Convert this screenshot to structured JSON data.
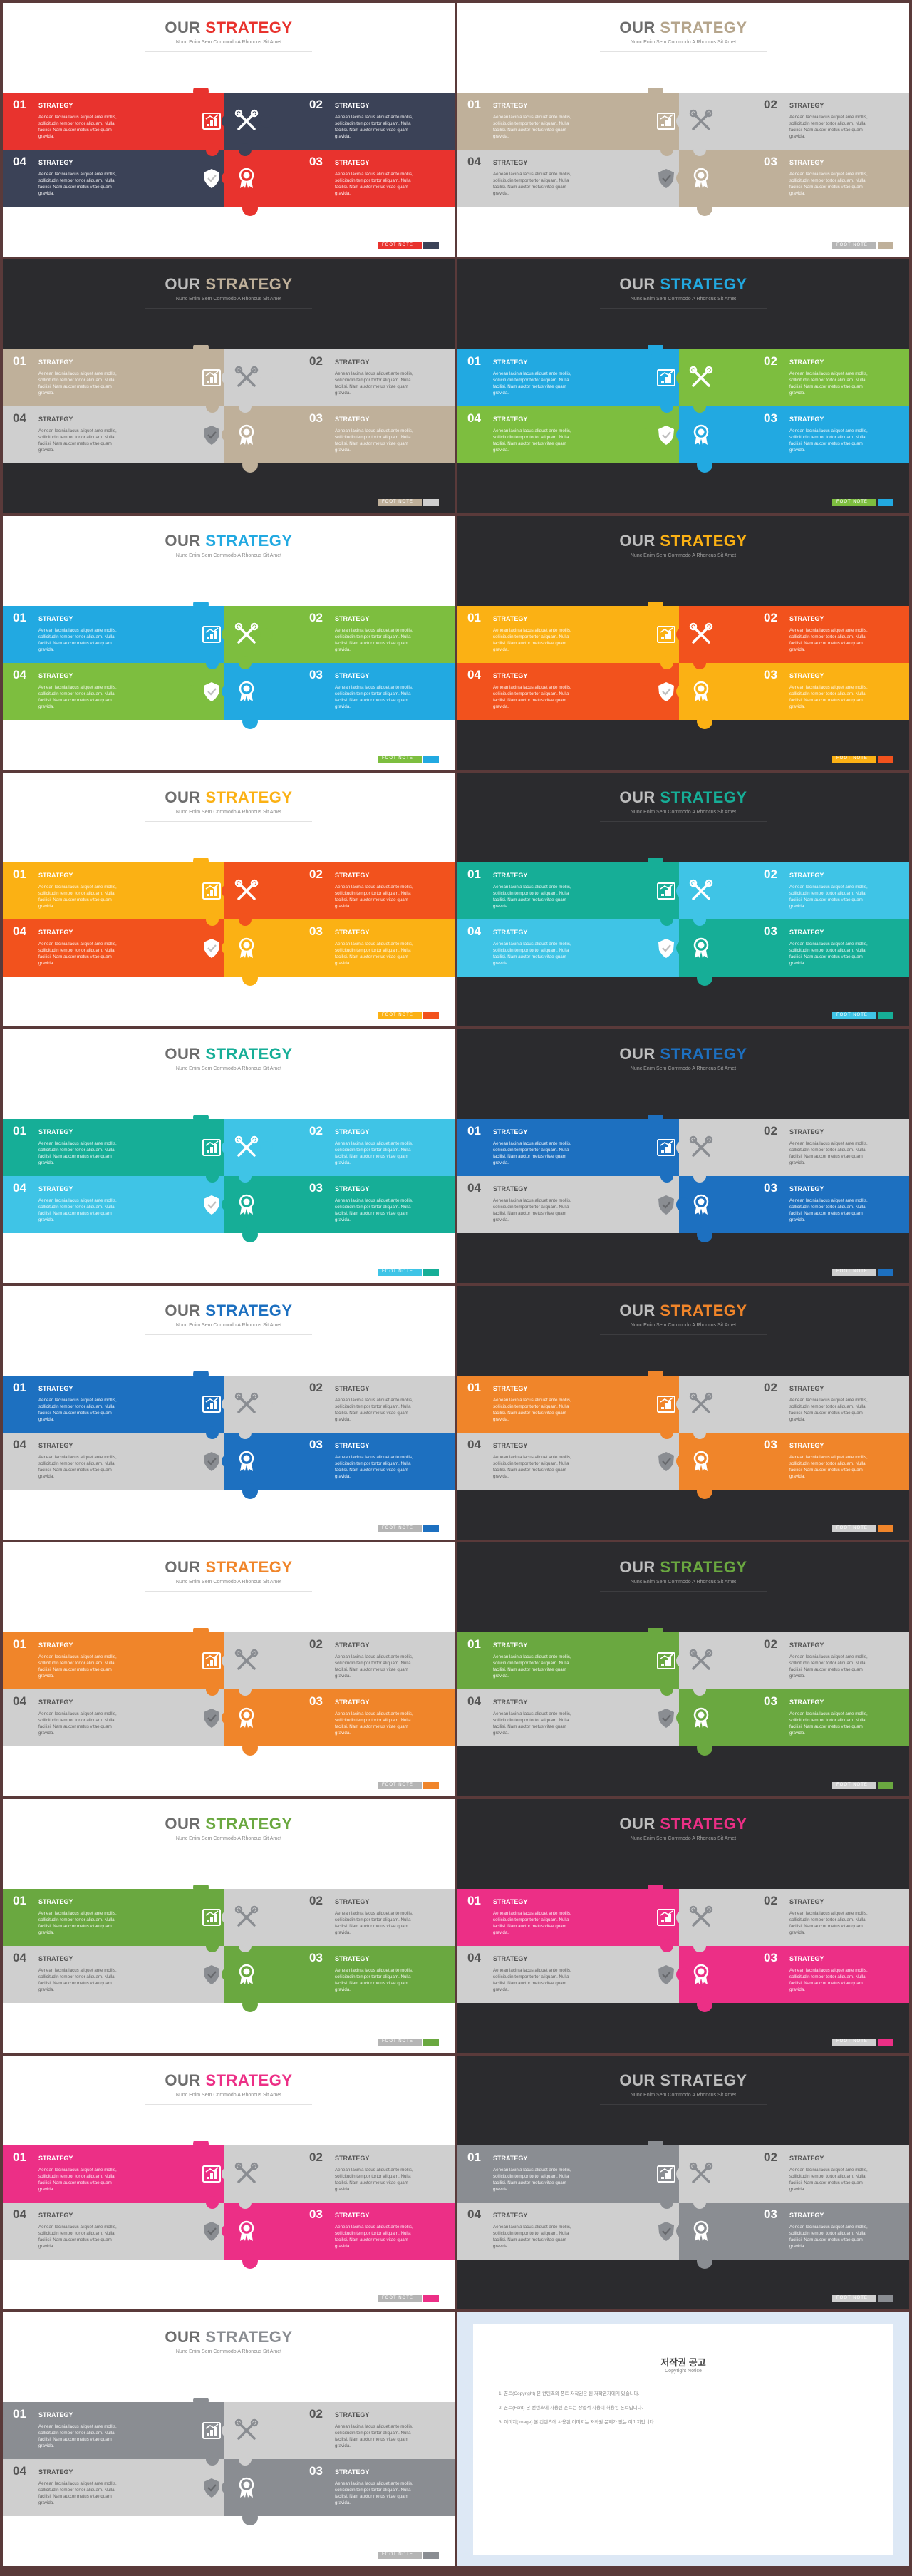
{
  "slide_text": {
    "title_first": "OUR",
    "title_second": "STRATEGY",
    "subtitle": "Nunc Enim Sem Commodo A Rhoncus Sit Amet",
    "strategy_label": "STRATEGY",
    "numbers": [
      "01",
      "02",
      "03",
      "04"
    ],
    "description": "Aenean lacinia lacus aliquet ante mollis, sollicitudin tempor tortor aliquam. Nulla facilisi. Nam auctor metus vitae quam gravida.",
    "footer_text": "FOOT NOTE"
  },
  "icons": [
    "chart-icon",
    "tools-icon",
    "shield-icon",
    "award-icon"
  ],
  "slides": [
    {
      "theme": "light",
      "accent": "#e8332e",
      "second": "#3b4257",
      "title_color": "#e8332e",
      "footer_colors": [
        "#e8332e",
        "#3b4257"
      ]
    },
    {
      "theme": "light",
      "accent": "#bfb09a",
      "second": "#cfcfcf",
      "title_color": "#b5a58c",
      "footer_colors": [
        "#b5b5b5",
        "#bfb09a"
      ]
    },
    {
      "theme": "dark",
      "accent": "#bfb09a",
      "second": "#cfcfcf",
      "title_color": "#bfb09a",
      "footer_colors": [
        "#bfb09a",
        "#cfcfcf"
      ]
    },
    {
      "theme": "dark",
      "accent": "#22a9e1",
      "second": "#7dbe3f",
      "title_color": "#22a9e1",
      "footer_colors": [
        "#7dbe3f",
        "#22a9e1"
      ]
    },
    {
      "theme": "light",
      "accent": "#22a9e1",
      "second": "#7dbe3f",
      "title_color": "#22a9e1",
      "footer_colors": [
        "#7dbe3f",
        "#22a9e1"
      ]
    },
    {
      "theme": "dark",
      "accent": "#fbb114",
      "second": "#f2521d",
      "title_color": "#fbb114",
      "footer_colors": [
        "#fbb114",
        "#f2521d"
      ]
    },
    {
      "theme": "light",
      "accent": "#fbb114",
      "second": "#f2521d",
      "title_color": "#fbb114",
      "footer_colors": [
        "#fbb114",
        "#f2521d"
      ]
    },
    {
      "theme": "dark",
      "accent": "#16ae97",
      "second": "#3fc4e6",
      "title_color": "#16ae97",
      "footer_colors": [
        "#3fc4e6",
        "#16ae97"
      ]
    },
    {
      "theme": "light",
      "accent": "#16ae97",
      "second": "#3fc4e6",
      "title_color": "#16ae97",
      "footer_colors": [
        "#3fc4e6",
        "#16ae97"
      ]
    },
    {
      "theme": "dark",
      "accent": "#1d70c0",
      "second": "#cfcfcf",
      "title_color": "#1d70c0",
      "footer_colors": [
        "#cfcfcf",
        "#1d70c0"
      ]
    },
    {
      "theme": "light",
      "accent": "#1d70c0",
      "second": "#cfcfcf",
      "title_color": "#1d70c0",
      "footer_colors": [
        "#b5b5b5",
        "#1d70c0"
      ]
    },
    {
      "theme": "dark",
      "accent": "#f0852a",
      "second": "#cfcfcf",
      "title_color": "#f0852a",
      "footer_colors": [
        "#cfcfcf",
        "#f0852a"
      ]
    },
    {
      "theme": "light",
      "accent": "#f0852a",
      "second": "#cfcfcf",
      "title_color": "#f0852a",
      "footer_colors": [
        "#b5b5b5",
        "#f0852a"
      ]
    },
    {
      "theme": "dark",
      "accent": "#6aa840",
      "second": "#cfcfcf",
      "title_color": "#6aa840",
      "footer_colors": [
        "#cfcfcf",
        "#6aa840"
      ]
    },
    {
      "theme": "light",
      "accent": "#6aa840",
      "second": "#cfcfcf",
      "title_color": "#6aa840",
      "footer_colors": [
        "#b5b5b5",
        "#6aa840"
      ]
    },
    {
      "theme": "dark",
      "accent": "#ec2f86",
      "second": "#cfcfcf",
      "title_color": "#ec2f86",
      "footer_colors": [
        "#cfcfcf",
        "#ec2f86"
      ]
    },
    {
      "theme": "light",
      "accent": "#ec2f86",
      "second": "#cfcfcf",
      "title_color": "#ec2f86",
      "footer_colors": [
        "#b5b5b5",
        "#ec2f86"
      ]
    },
    {
      "theme": "dark",
      "accent": "#8a8d92",
      "second": "#cfcfcf",
      "title_color": "#bdbdbd",
      "footer_colors": [
        "#cfcfcf",
        "#8a8d92"
      ]
    },
    {
      "theme": "light",
      "accent": "#8a8d92",
      "second": "#cfcfcf",
      "title_color": "#8a8d92",
      "footer_colors": [
        "#b5b5b5",
        "#8a8d92"
      ]
    }
  ],
  "notice": {
    "title": "저작권 공고",
    "subtitle": "Copyright Notice",
    "paragraphs": [
      "",
      "1. 폰트(Copyright) 본 컨텐츠의 폰트 저작권은 원 저작권자에게 있습니다.",
      "2. 폰트(Font) 본 컨텐츠에 사용된 폰트는 상업적 사용이 허용된 폰트입니다.",
      "3. 이미지(Image) 본 컨텐츠에 사용된 이미지는 저작권 문제가 없는 이미지입니다.",
      ""
    ]
  }
}
